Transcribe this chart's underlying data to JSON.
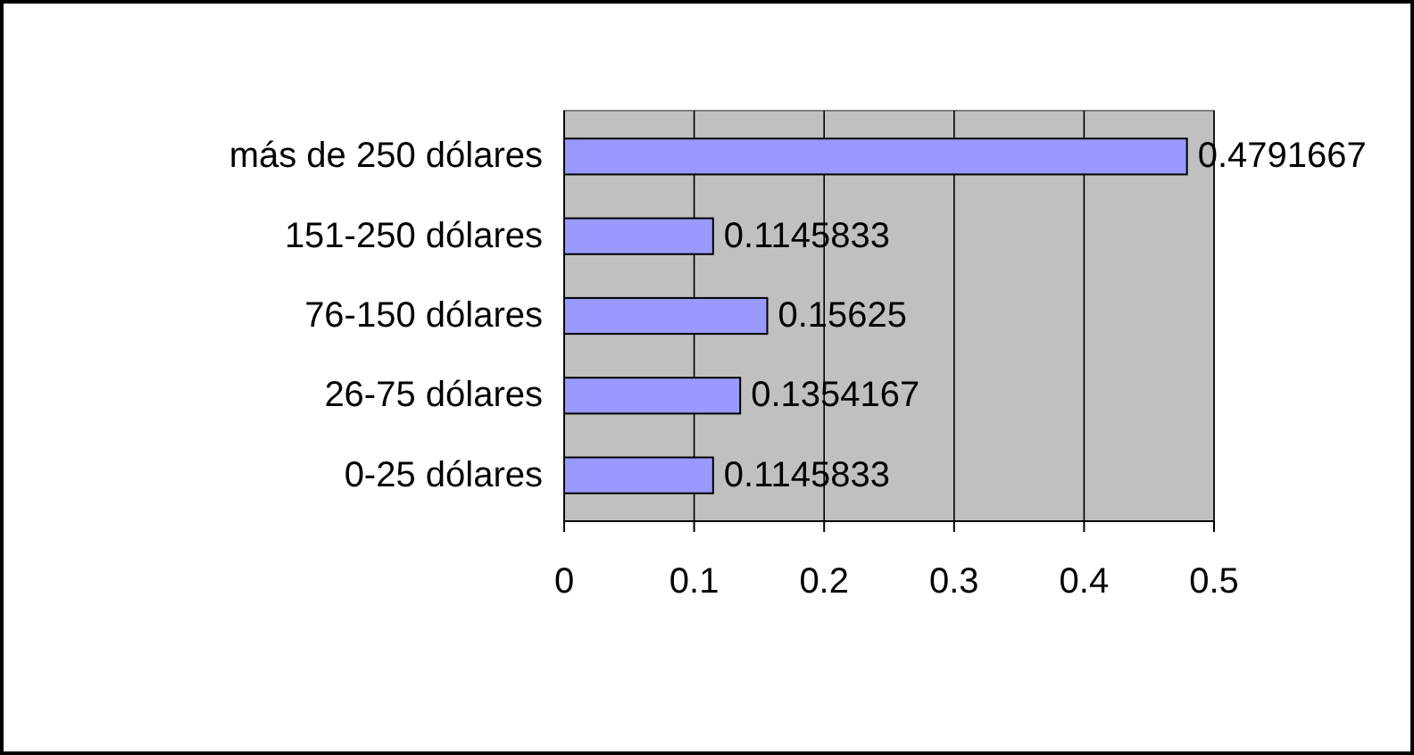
{
  "chart_data": {
    "type": "bar",
    "orientation": "horizontal",
    "categories": [
      "más de 250 dólares",
      "151-250 dólares",
      "76-150 dólares",
      "26-75 dólares",
      "0-25 dólares"
    ],
    "values": [
      0.4791667,
      0.1145833,
      0.15625,
      0.1354167,
      0.1145833
    ],
    "color": "#9999ff",
    "xlim": [
      0,
      0.5
    ],
    "xticks": [
      0,
      0.1,
      0.2,
      0.3,
      0.4,
      0.5
    ],
    "grid": "x",
    "data_labels": true
  }
}
